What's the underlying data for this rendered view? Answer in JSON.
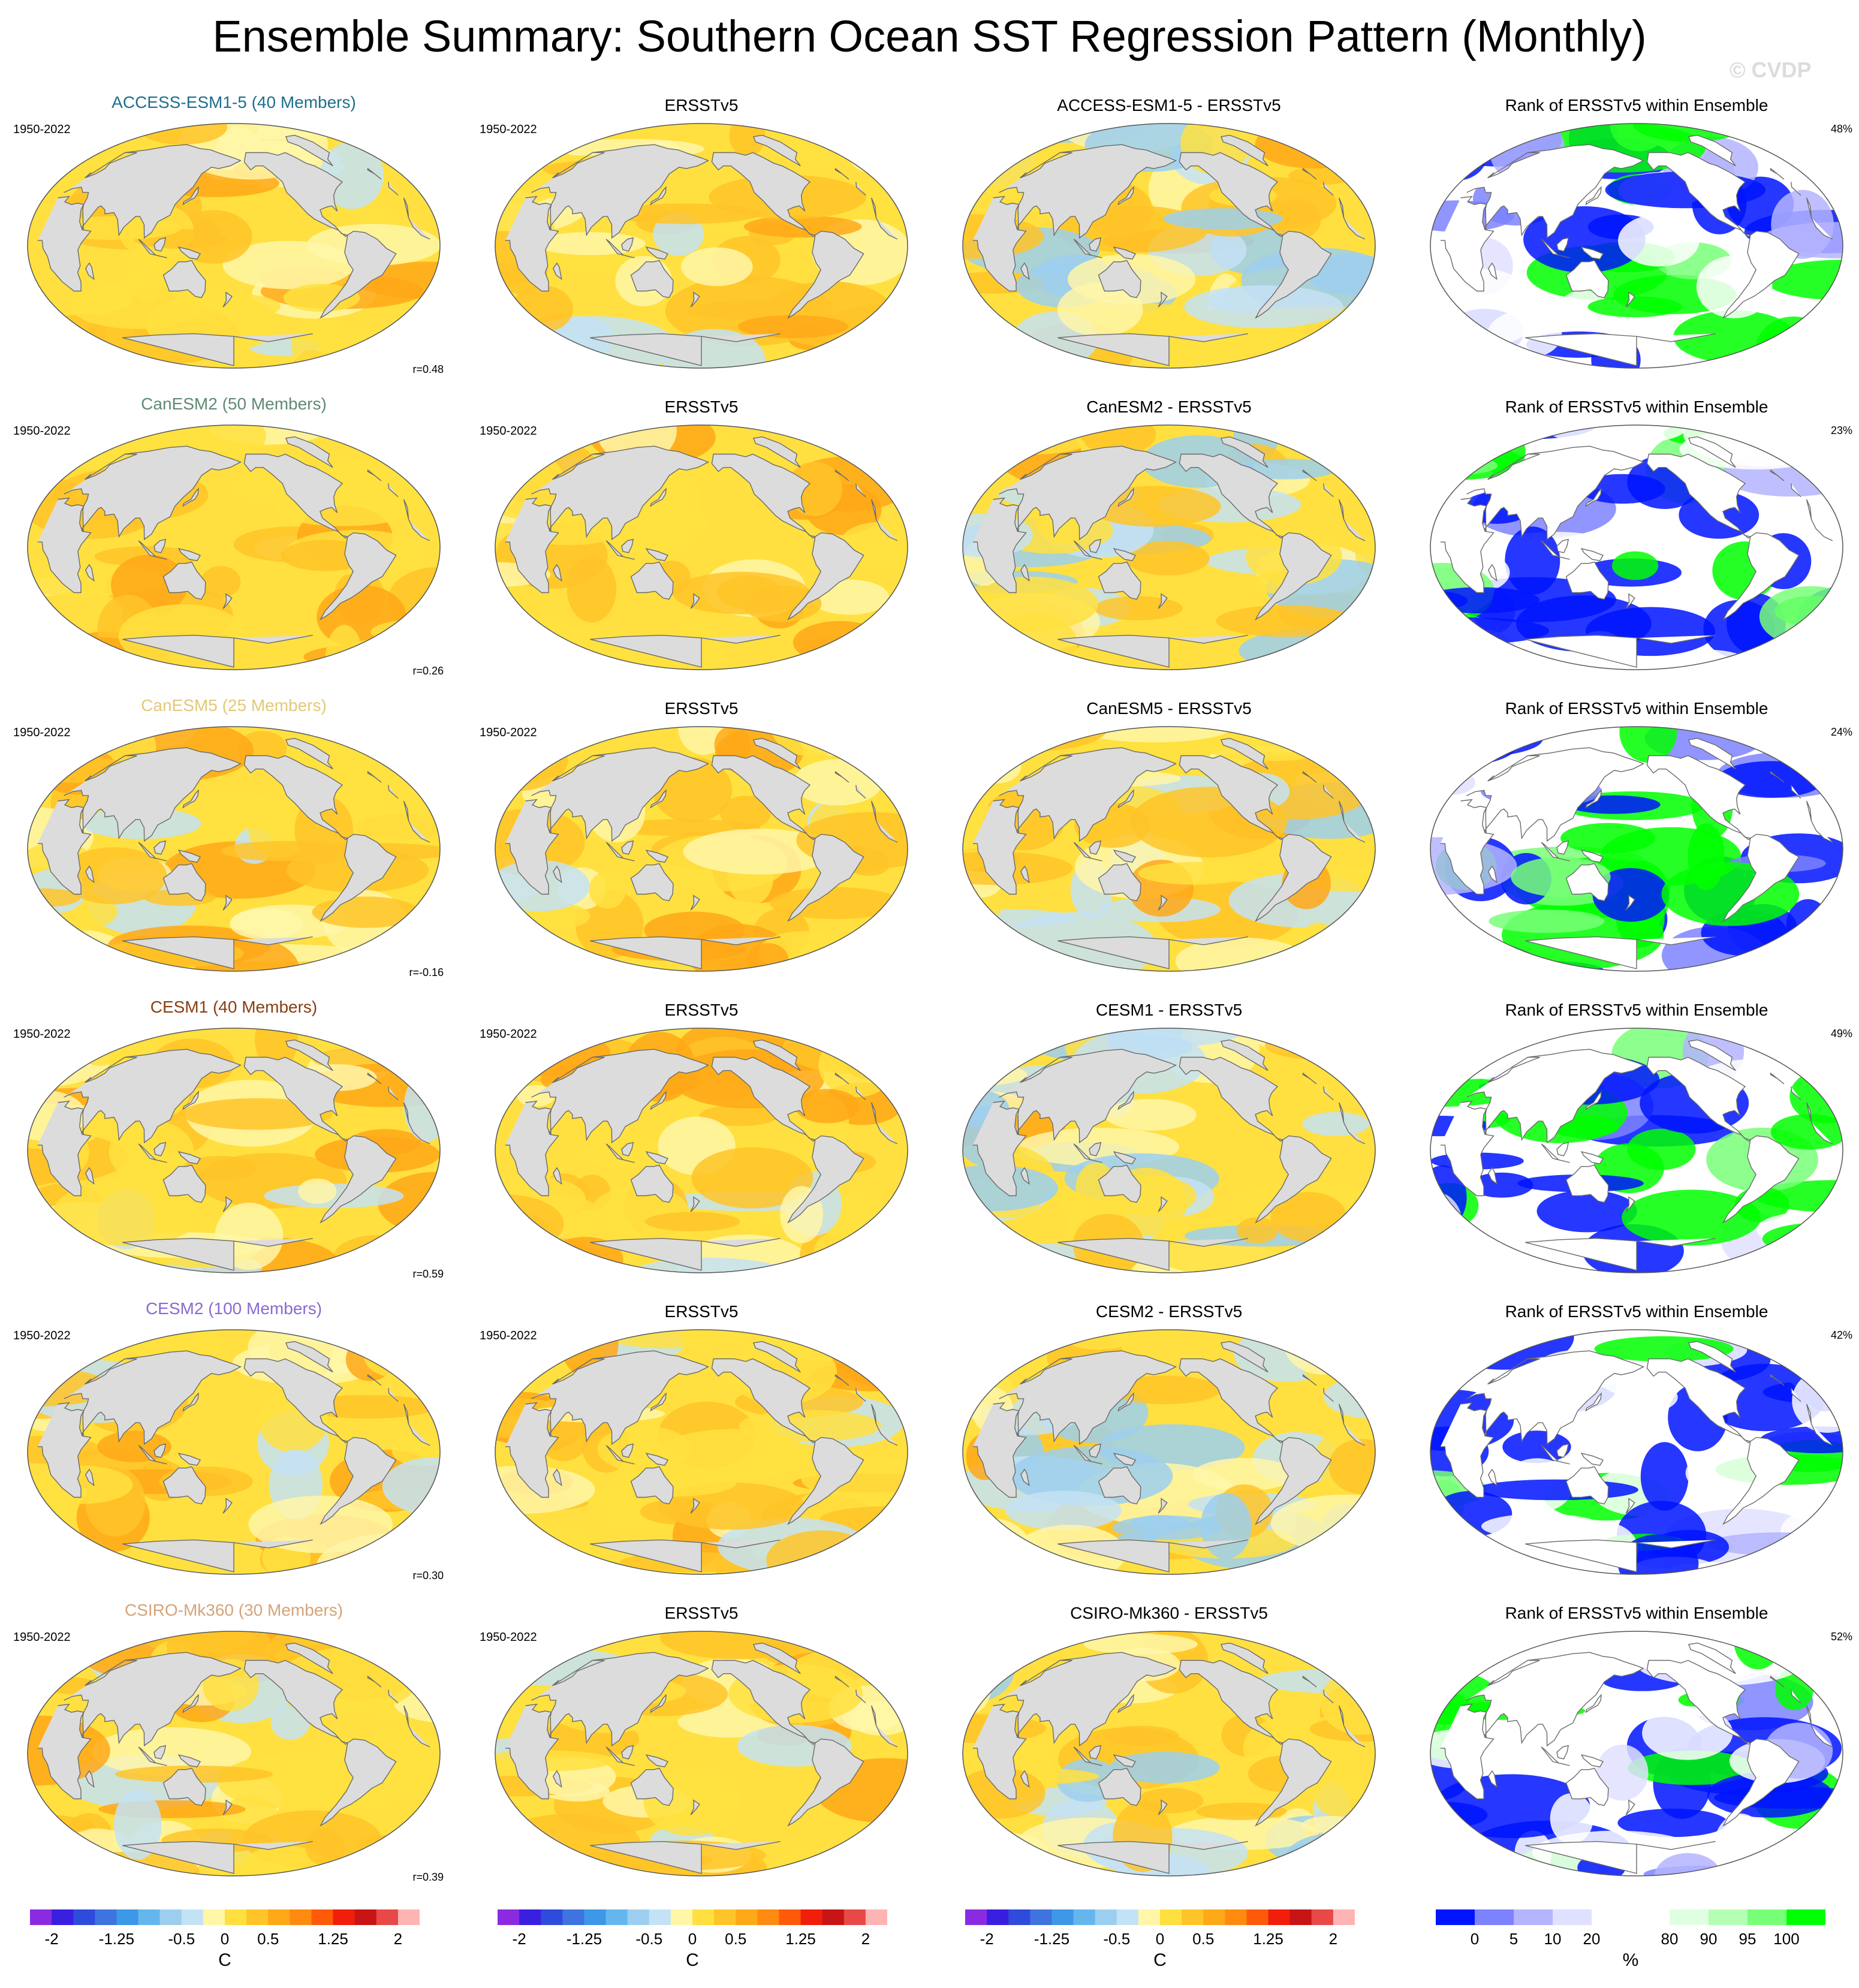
{
  "title": "Ensemble Summary: Southern Ocean SST Regression Pattern (Monthly)",
  "watermark": "© CVDP",
  "period": "1950-2022",
  "rank_title": "Rank of ERSSTv5 within Ensemble",
  "obs_title": "ERSSTv5",
  "colors": {
    "land": "#dcdcdc",
    "coast": "#6a6a6a"
  },
  "rows": [
    {
      "model_title": "ACCESS-ESM1-5 (40 Members)",
      "title_color": "#1d6f8c",
      "diff_title": "ACCESS-ESM1-5 - ERSSTv5",
      "r": "r=0.48",
      "rank_pct": "48%"
    },
    {
      "model_title": "CanESM2 (50 Members)",
      "title_color": "#5f8a73",
      "diff_title": "CanESM2 - ERSSTv5",
      "r": "r=0.26",
      "rank_pct": "23%"
    },
    {
      "model_title": "CanESM5 (25 Members)",
      "title_color": "#e3c878",
      "diff_title": "CanESM5 - ERSSTv5",
      "r": "r=-0.16",
      "rank_pct": "24%"
    },
    {
      "model_title": "CESM1 (40 Members)",
      "title_color": "#8a3d12",
      "diff_title": "CESM1 - ERSSTv5",
      "r": "r=0.59",
      "rank_pct": "49%"
    },
    {
      "model_title": "CESM2 (100 Members)",
      "title_color": "#8a6ad0",
      "diff_title": "CESM2 - ERSSTv5",
      "r": "r=0.30",
      "rank_pct": "42%"
    },
    {
      "model_title": "CSIRO-Mk360 (30 Members)",
      "title_color": "#d4a47a",
      "diff_title": "CSIRO-Mk360 - ERSSTv5",
      "r": "r=0.39",
      "rank_pct": "52%"
    }
  ],
  "colorbars": {
    "sst": {
      "colors": [
        "#8a2be2",
        "#3a1ee0",
        "#2e4bdc",
        "#3f73e0",
        "#3e98e8",
        "#66b6ee",
        "#9ccfef",
        "#c4e2f5",
        "#fff6a8",
        "#ffe040",
        "#ffc428",
        "#ffa818",
        "#ff8a10",
        "#ff5a0a",
        "#f01e0a",
        "#c81414",
        "#e84848",
        "#ffb4b4"
      ],
      "ticks": [
        "-2",
        "-1.25",
        "-0.5",
        "0",
        "0.5",
        "1.25",
        "2"
      ],
      "tick_index": [
        1,
        4,
        7,
        9,
        11,
        14,
        17
      ],
      "unit": "C"
    },
    "rank": {
      "colors": [
        "#0014ff",
        "#7d82ff",
        "#b4b4ff",
        "#e0e0ff",
        "#ffffff",
        "#ffffff",
        "#e0ffe0",
        "#b4ffb4",
        "#78ff78",
        "#00ff00"
      ],
      "ticks": [
        "0",
        "5",
        "10",
        "20",
        "80",
        "90",
        "95",
        "100"
      ],
      "tick_index": [
        1,
        2,
        3,
        4,
        6,
        7,
        8,
        9
      ],
      "unit": "%"
    }
  }
}
